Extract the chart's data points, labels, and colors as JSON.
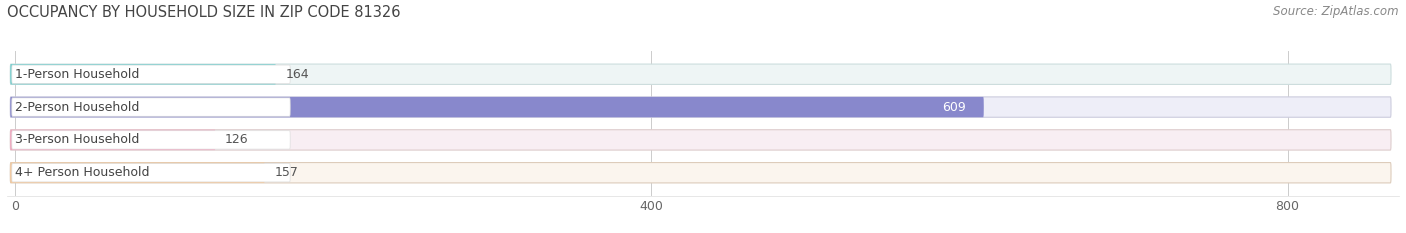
{
  "title": "OCCUPANCY BY HOUSEHOLD SIZE IN ZIP CODE 81326",
  "source": "Source: ZipAtlas.com",
  "categories": [
    "1-Person Household",
    "2-Person Household",
    "3-Person Household",
    "4+ Person Household"
  ],
  "values": [
    164,
    609,
    126,
    157
  ],
  "bar_colors": [
    "#72CECE",
    "#8888CC",
    "#F2A0BC",
    "#F5C89A"
  ],
  "bar_edge_colors": [
    "#72CECE",
    "#8888CC",
    "#F2A0BC",
    "#F5C89A"
  ],
  "bg_color": "#EFEFEF",
  "bar_bg_color": "#F0F0F0",
  "label_box_color": "#FFFFFF",
  "xlim": [
    -5,
    870
  ],
  "xticks": [
    0,
    400,
    800
  ],
  "figsize": [
    14.06,
    2.33
  ],
  "dpi": 100,
  "title_fontsize": 10.5,
  "source_fontsize": 8.5,
  "label_fontsize": 9,
  "value_fontsize": 9
}
